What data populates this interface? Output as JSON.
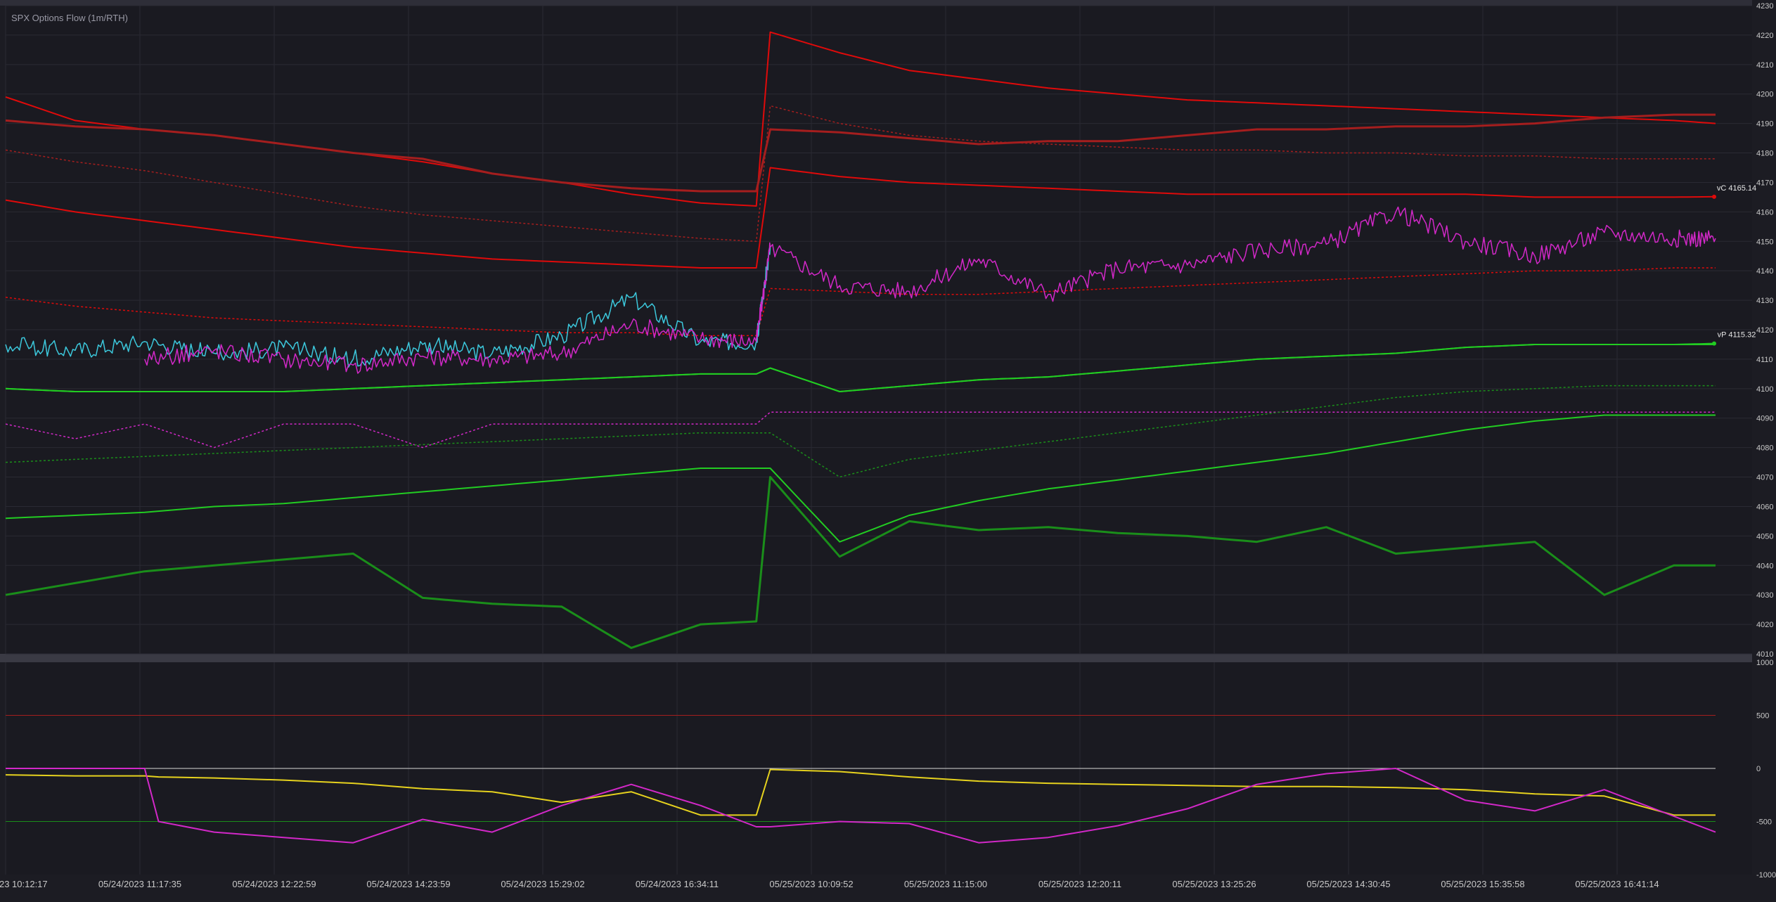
{
  "title": "SPX Options Flow (1m/RTH)",
  "colors": {
    "bg": "#1c1c23",
    "panel": "#1a1a21",
    "grid": "#2a2a33",
    "sep": "#3a3a44",
    "red": "#e00a0a",
    "darkred": "#a51e1e",
    "green": "#22cc22",
    "darkgreen": "#1a8e1a",
    "magenta": "#d228c8",
    "cyan": "#3cc8dc",
    "yellow": "#e6d21e",
    "white": "#d8d8d8",
    "axis_text": "#c8c8c8"
  },
  "chart_data": [
    {
      "type": "line",
      "title": "SPX Options Flow (1m/RTH)",
      "xlabel": "",
      "ylabel": "",
      "ylim": [
        4010,
        4230
      ],
      "y_ticks": [
        4010,
        4020,
        4030,
        4040,
        4050,
        4060,
        4070,
        4080,
        4090,
        4100,
        4110,
        4120,
        4130,
        4140,
        4150,
        4160,
        4170,
        4180,
        4190,
        4200,
        4210,
        4220,
        4230
      ],
      "x_ticks": [
        "05/24/2023 10:12:17",
        "05/24/2023 11:17:35",
        "05/24/2023 12:22:59",
        "05/24/2023 14:23:59",
        "05/24/2023 15:29:02",
        "05/24/2023 16:34:11",
        "05/25/2023 10:09:52",
        "05/25/2023 11:15:00",
        "05/25/2023 12:20:11",
        "05/25/2023 13:25:26",
        "05/25/2023 14:30:45",
        "05/25/2023 15:35:58",
        "05/25/2023 16:41:14"
      ],
      "x": [
        0,
        0.5,
        1,
        1.5,
        2,
        2.5,
        3,
        3.5,
        4,
        4.5,
        5,
        5.4,
        5.5,
        6,
        6.5,
        7,
        7.5,
        8,
        8.5,
        9,
        9.5,
        10,
        10.5,
        11,
        11.5,
        12,
        12.3
      ],
      "annotations": [
        {
          "text": "vC 4165.14",
          "series": "vC",
          "value": 4165.14
        },
        {
          "text": "vP 4115.32",
          "series": "vP",
          "value": 4115.32
        }
      ],
      "series": [
        {
          "name": "",
          "color": "red",
          "width": 2,
          "dash": false,
          "values": [
            4199,
            4191,
            4188,
            4186,
            4183,
            4180,
            4177,
            4173,
            4170,
            4166,
            4163,
            4162,
            4221,
            4214,
            4208,
            4205,
            4202,
            4200,
            4198,
            4197,
            4196,
            4195,
            4194,
            4193,
            4192,
            4191,
            4190
          ]
        },
        {
          "name": "",
          "color": "darkred",
          "width": 3,
          "dash": false,
          "values": [
            4191,
            4189,
            4188,
            4186,
            4183,
            4180,
            4178,
            4173,
            4170,
            4168,
            4167,
            4167,
            4188,
            4187,
            4185,
            4183,
            4184,
            4184,
            4186,
            4188,
            4188,
            4189,
            4189,
            4190,
            4192,
            4193,
            4193
          ]
        },
        {
          "name": "",
          "color": "darkred",
          "width": 1.5,
          "dash": true,
          "values": [
            4181,
            4177,
            4174,
            4170,
            4166,
            4162,
            4159,
            4157,
            4155,
            4153,
            4151,
            4150,
            4196,
            4190,
            4186,
            4184,
            4183,
            4182,
            4181,
            4181,
            4180,
            4180,
            4179,
            4179,
            4178,
            4178,
            4178
          ]
        },
        {
          "name": "vC",
          "color": "red",
          "width": 2,
          "dash": false,
          "values": [
            4164,
            4160,
            4157,
            4154,
            4151,
            4148,
            4146,
            4144,
            4143,
            4142,
            4141,
            4141,
            4175,
            4172,
            4170,
            4169,
            4168,
            4167,
            4166,
            4166,
            4166,
            4166,
            4166,
            4165,
            4165,
            4165,
            4165.14
          ]
        },
        {
          "name": "",
          "color": "red",
          "width": 1.5,
          "dash": true,
          "values": [
            4131,
            4128,
            4126,
            4124,
            4123,
            4122,
            4121,
            4120,
            4119,
            4119,
            4118,
            4118,
            4134,
            4133,
            4132,
            4132,
            4133,
            4134,
            4135,
            4136,
            4137,
            4138,
            4139,
            4140,
            4140,
            4141,
            4141
          ]
        },
        {
          "name": "",
          "color": "cyan",
          "width": 1.5,
          "dash": false,
          "values": [
            4115,
            4113,
            4116,
            4112,
            4114,
            4110,
            4115,
            4112,
            4118,
            4131,
            4116,
            4116,
            4148,
            null,
            null,
            null,
            null,
            null,
            null,
            null,
            null,
            null,
            null,
            null,
            null,
            null,
            null
          ]
        },
        {
          "name": "",
          "color": "magenta",
          "width": 1.5,
          "dash": false,
          "values": [
            null,
            null,
            4110,
            4113,
            4110,
            4108,
            4111,
            4110,
            4112,
            4122,
            4117,
            4116,
            4148,
            4135,
            4133,
            4144,
            4132,
            4141,
            4142,
            4147,
            4149,
            4160,
            4150,
            4145,
            4153,
            4151,
            4151
          ]
        },
        {
          "name": "",
          "color": "green",
          "width": 2,
          "dash": false,
          "values": [
            4100,
            4099,
            4099,
            4099,
            4099,
            4100,
            4101,
            4102,
            4103,
            4104,
            4105,
            4105,
            4107,
            4099,
            4101,
            4103,
            4104,
            4106,
            4108,
            4110,
            4111,
            4112,
            4114,
            4115,
            4115,
            4115,
            4115
          ]
        },
        {
          "name": "vP",
          "color": "green",
          "width": 2,
          "dash": false,
          "values": [
            4100,
            4099,
            4099,
            4099,
            4099,
            4100,
            4101,
            4102,
            4103,
            4104,
            4105,
            4105,
            4107,
            4099,
            4101,
            4103,
            4104,
            4106,
            4108,
            4110,
            4111,
            4112,
            4114,
            4115,
            4115,
            4115,
            4115.32
          ]
        },
        {
          "name": "",
          "color": "magenta",
          "width": 1.5,
          "dash": true,
          "values": [
            4088,
            4083,
            4088,
            4080,
            4088,
            4088,
            4080,
            4088,
            4088,
            4088,
            4088,
            4088,
            4092,
            4092,
            4092,
            4092,
            4092,
            4092,
            4092,
            4092,
            4092,
            4092,
            4092,
            4092,
            4092,
            4092,
            4092
          ]
        },
        {
          "name": "",
          "color": "darkgreen",
          "width": 1.5,
          "dash": true,
          "values": [
            4075,
            4076,
            4077,
            4078,
            4079,
            4080,
            4081,
            4082,
            4083,
            4084,
            4085,
            4085,
            4085,
            4070,
            4076,
            4079,
            4082,
            4085,
            4088,
            4091,
            4094,
            4097,
            4099,
            4100,
            4101,
            4101,
            4101
          ]
        },
        {
          "name": "",
          "color": "green",
          "width": 2,
          "dash": false,
          "values": [
            4056,
            4057,
            4058,
            4060,
            4061,
            4063,
            4065,
            4067,
            4069,
            4071,
            4073,
            4073,
            4073,
            4048,
            4057,
            4062,
            4066,
            4069,
            4072,
            4075,
            4078,
            4082,
            4086,
            4089,
            4091,
            4091,
            4091
          ]
        },
        {
          "name": "",
          "color": "darkgreen",
          "width": 3,
          "dash": false,
          "values": [
            4030,
            4034,
            4038,
            4040,
            4042,
            4044,
            4029,
            4027,
            4026,
            4012,
            4020,
            4021,
            4070,
            4043,
            4055,
            4052,
            4053,
            4051,
            4050,
            4048,
            4053,
            4044,
            4046,
            4048,
            4030,
            4040,
            4040
          ]
        }
      ]
    },
    {
      "type": "line",
      "title": "",
      "ylim": [
        -1000,
        1000
      ],
      "y_ticks": [
        -1000,
        -500,
        0,
        500,
        1000
      ],
      "reference_lines": [
        {
          "value": 500,
          "color": "darkred"
        },
        {
          "value": 0,
          "color": "white"
        },
        {
          "value": -500,
          "color": "darkgreen"
        }
      ],
      "x": [
        0,
        0.5,
        1,
        1.1,
        1.5,
        2,
        2.5,
        3,
        3.5,
        4,
        4.5,
        5,
        5.4,
        5.5,
        6,
        6.5,
        7,
        7.5,
        8,
        8.5,
        9,
        9.5,
        10,
        10.5,
        11,
        11.5,
        12,
        12.3
      ],
      "series": [
        {
          "name": "",
          "color": "yellow",
          "width": 2,
          "values": [
            -60,
            -70,
            -70,
            -80,
            -90,
            -110,
            -140,
            -190,
            -220,
            -320,
            -220,
            -440,
            -440,
            -10,
            -30,
            -80,
            -120,
            -140,
            -150,
            -160,
            -170,
            -170,
            -180,
            -200,
            -240,
            -260,
            -440,
            -440
          ]
        },
        {
          "name": "",
          "color": "magenta",
          "width": 2,
          "values": [
            0,
            0,
            0,
            -500,
            -600,
            -650,
            -700,
            -480,
            -600,
            -350,
            -150,
            -350,
            -550,
            -550,
            -500,
            -520,
            -700,
            -650,
            -540,
            -380,
            -150,
            -50,
            0,
            -300,
            -400,
            -200,
            -450,
            -600
          ]
        }
      ]
    }
  ]
}
